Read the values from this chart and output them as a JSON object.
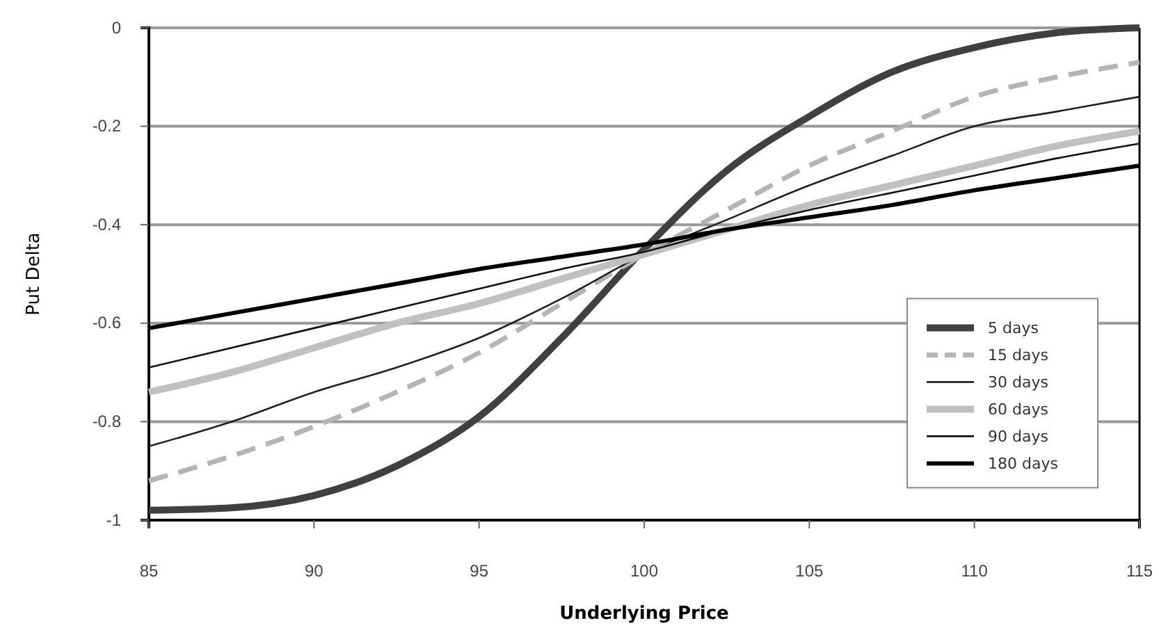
{
  "chart_data": {
    "type": "line",
    "xlabel": "Underlying Price",
    "ylabel": "Put Delta",
    "xlim": [
      85,
      115
    ],
    "ylim": [
      -1,
      0
    ],
    "xticks": [
      85,
      90,
      95,
      100,
      105,
      110,
      115
    ],
    "yticks": [
      {
        "value": -1,
        "label": "-1"
      },
      {
        "value": -0.8,
        "label": "-0.8"
      },
      {
        "value": -0.6,
        "label": "-0.6"
      },
      {
        "value": -0.4,
        "label": "-0.4"
      },
      {
        "value": -0.2,
        "label": "-0.2"
      },
      0
    ],
    "grid": "y",
    "legend": "right",
    "marker": "none",
    "x": [
      85,
      87.5,
      90,
      92.5,
      95,
      97.5,
      100,
      102.5,
      105,
      107.5,
      110,
      112.5,
      115
    ],
    "series": [
      {
        "name": "5 days",
        "color": "#404040",
        "line_style": "solid",
        "values": [
          -0.98,
          -0.975,
          -0.95,
          -0.89,
          -0.79,
          -0.63,
          -0.45,
          -0.29,
          -0.18,
          -0.09,
          -0.04,
          -0.01,
          0
        ]
      },
      {
        "name": "15 days",
        "color": "#b4b4b4",
        "line_style": "dashed",
        "values": [
          -0.92,
          -0.87,
          -0.81,
          -0.74,
          -0.66,
          -0.56,
          -0.46,
          -0.37,
          -0.28,
          -0.21,
          -0.14,
          -0.1,
          -0.07
        ]
      },
      {
        "name": "30 days",
        "color": "#202020",
        "line_style": "solid",
        "values": [
          -0.85,
          -0.8,
          -0.74,
          -0.69,
          -0.63,
          -0.55,
          -0.46,
          -0.39,
          -0.32,
          -0.26,
          -0.2,
          -0.17,
          -0.14
        ]
      },
      {
        "name": "60 days",
        "color": "#c0c0c0",
        "line_style": "solid",
        "values": [
          -0.74,
          -0.7,
          -0.65,
          -0.6,
          -0.56,
          -0.51,
          -0.46,
          -0.41,
          -0.36,
          -0.32,
          -0.28,
          -0.24,
          -0.21
        ]
      },
      {
        "name": "90 days",
        "color": "#101010",
        "line_style": "solid",
        "values": [
          -0.69,
          -0.65,
          -0.61,
          -0.57,
          -0.53,
          -0.49,
          -0.455,
          -0.41,
          -0.37,
          -0.335,
          -0.3,
          -0.265,
          -0.235
        ]
      },
      {
        "name": "180 days",
        "color": "#000000",
        "line_style": "solid",
        "values": [
          -0.61,
          -0.58,
          -0.55,
          -0.52,
          -0.49,
          -0.465,
          -0.44,
          -0.41,
          -0.385,
          -0.36,
          -0.33,
          -0.305,
          -0.28
        ]
      }
    ]
  }
}
